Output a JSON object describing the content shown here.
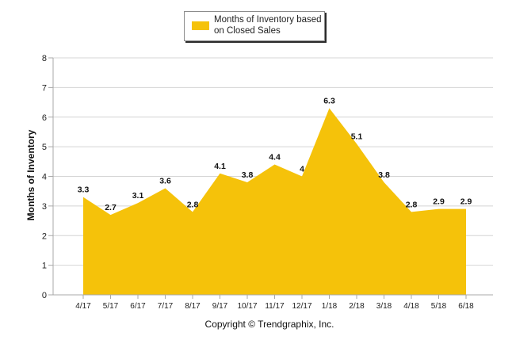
{
  "legend": {
    "label": "Months of Inventory based on Closed Sales"
  },
  "copyright": "Copyright © Trendgraphix, Inc.",
  "colors": {
    "fill": "#f5c20a",
    "grid": "#d4d4d4",
    "axis": "#a8a8a8",
    "text": "#111111"
  },
  "chart_data": {
    "type": "area",
    "categories": [
      "4/17",
      "5/17",
      "6/17",
      "7/17",
      "8/17",
      "9/17",
      "10/17",
      "11/17",
      "12/17",
      "1/18",
      "2/18",
      "3/18",
      "4/18",
      "5/18",
      "6/18"
    ],
    "series": [
      {
        "name": "Months of Inventory based on Closed Sales",
        "values": [
          3.3,
          2.7,
          3.1,
          3.6,
          2.8,
          4.1,
          3.8,
          4.4,
          4,
          6.3,
          5.1,
          3.8,
          2.8,
          2.9,
          2.9
        ],
        "labels": [
          "3.3",
          "2.7",
          "3.1",
          "3.6",
          "2.8",
          "4.1",
          "3.8",
          "4.4",
          "4",
          "6.3",
          "5.1",
          "3.8",
          "2.8",
          "2.9",
          "2.9"
        ]
      }
    ],
    "ylabel": "Months of Inventory",
    "xlabel": "",
    "ylim": [
      0,
      8
    ],
    "yticks": [
      "0",
      "1",
      "2",
      "3",
      "4",
      "5",
      "6",
      "7",
      "8"
    ],
    "grid": true,
    "legend_position": "top-center"
  }
}
